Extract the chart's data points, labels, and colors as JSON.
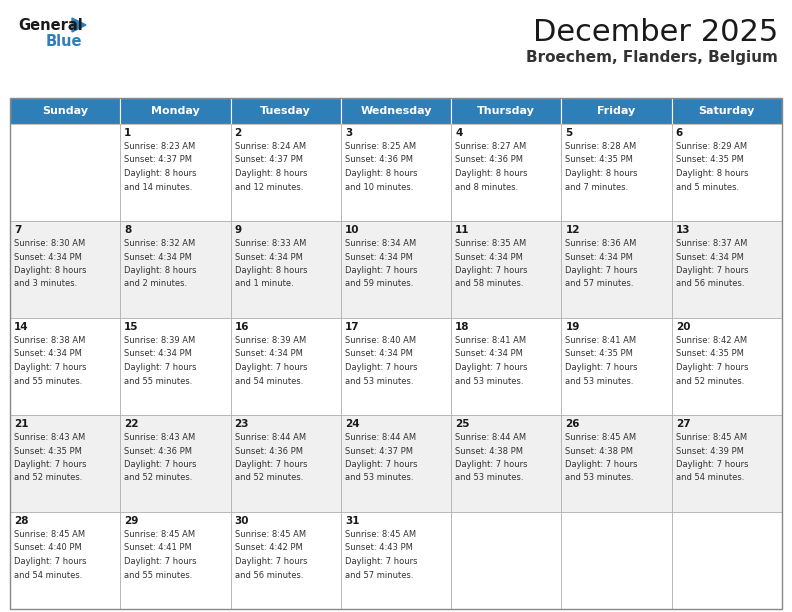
{
  "title": "December 2025",
  "subtitle": "Broechem, Flanders, Belgium",
  "header_color": "#2E7EB8",
  "header_text_color": "#FFFFFF",
  "background_color": "#FFFFFF",
  "grid_color": "#CCCCCC",
  "days_of_week": [
    "Sunday",
    "Monday",
    "Tuesday",
    "Wednesday",
    "Thursday",
    "Friday",
    "Saturday"
  ],
  "calendar_data": [
    [
      {
        "day": "",
        "sunrise": "",
        "sunset": "",
        "daylight": ""
      },
      {
        "day": "1",
        "sunrise": "8:23 AM",
        "sunset": "4:37 PM",
        "daylight": "8 hours\nand 14 minutes."
      },
      {
        "day": "2",
        "sunrise": "8:24 AM",
        "sunset": "4:37 PM",
        "daylight": "8 hours\nand 12 minutes."
      },
      {
        "day": "3",
        "sunrise": "8:25 AM",
        "sunset": "4:36 PM",
        "daylight": "8 hours\nand 10 minutes."
      },
      {
        "day": "4",
        "sunrise": "8:27 AM",
        "sunset": "4:36 PM",
        "daylight": "8 hours\nand 8 minutes."
      },
      {
        "day": "5",
        "sunrise": "8:28 AM",
        "sunset": "4:35 PM",
        "daylight": "8 hours\nand 7 minutes."
      },
      {
        "day": "6",
        "sunrise": "8:29 AM",
        "sunset": "4:35 PM",
        "daylight": "8 hours\nand 5 minutes."
      }
    ],
    [
      {
        "day": "7",
        "sunrise": "8:30 AM",
        "sunset": "4:34 PM",
        "daylight": "8 hours\nand 3 minutes."
      },
      {
        "day": "8",
        "sunrise": "8:32 AM",
        "sunset": "4:34 PM",
        "daylight": "8 hours\nand 2 minutes."
      },
      {
        "day": "9",
        "sunrise": "8:33 AM",
        "sunset": "4:34 PM",
        "daylight": "8 hours\nand 1 minute."
      },
      {
        "day": "10",
        "sunrise": "8:34 AM",
        "sunset": "4:34 PM",
        "daylight": "7 hours\nand 59 minutes."
      },
      {
        "day": "11",
        "sunrise": "8:35 AM",
        "sunset": "4:34 PM",
        "daylight": "7 hours\nand 58 minutes."
      },
      {
        "day": "12",
        "sunrise": "8:36 AM",
        "sunset": "4:34 PM",
        "daylight": "7 hours\nand 57 minutes."
      },
      {
        "day": "13",
        "sunrise": "8:37 AM",
        "sunset": "4:34 PM",
        "daylight": "7 hours\nand 56 minutes."
      }
    ],
    [
      {
        "day": "14",
        "sunrise": "8:38 AM",
        "sunset": "4:34 PM",
        "daylight": "7 hours\nand 55 minutes."
      },
      {
        "day": "15",
        "sunrise": "8:39 AM",
        "sunset": "4:34 PM",
        "daylight": "7 hours\nand 55 minutes."
      },
      {
        "day": "16",
        "sunrise": "8:39 AM",
        "sunset": "4:34 PM",
        "daylight": "7 hours\nand 54 minutes."
      },
      {
        "day": "17",
        "sunrise": "8:40 AM",
        "sunset": "4:34 PM",
        "daylight": "7 hours\nand 53 minutes."
      },
      {
        "day": "18",
        "sunrise": "8:41 AM",
        "sunset": "4:34 PM",
        "daylight": "7 hours\nand 53 minutes."
      },
      {
        "day": "19",
        "sunrise": "8:41 AM",
        "sunset": "4:35 PM",
        "daylight": "7 hours\nand 53 minutes."
      },
      {
        "day": "20",
        "sunrise": "8:42 AM",
        "sunset": "4:35 PM",
        "daylight": "7 hours\nand 52 minutes."
      }
    ],
    [
      {
        "day": "21",
        "sunrise": "8:43 AM",
        "sunset": "4:35 PM",
        "daylight": "7 hours\nand 52 minutes."
      },
      {
        "day": "22",
        "sunrise": "8:43 AM",
        "sunset": "4:36 PM",
        "daylight": "7 hours\nand 52 minutes."
      },
      {
        "day": "23",
        "sunrise": "8:44 AM",
        "sunset": "4:36 PM",
        "daylight": "7 hours\nand 52 minutes."
      },
      {
        "day": "24",
        "sunrise": "8:44 AM",
        "sunset": "4:37 PM",
        "daylight": "7 hours\nand 53 minutes."
      },
      {
        "day": "25",
        "sunrise": "8:44 AM",
        "sunset": "4:38 PM",
        "daylight": "7 hours\nand 53 minutes."
      },
      {
        "day": "26",
        "sunrise": "8:45 AM",
        "sunset": "4:38 PM",
        "daylight": "7 hours\nand 53 minutes."
      },
      {
        "day": "27",
        "sunrise": "8:45 AM",
        "sunset": "4:39 PM",
        "daylight": "7 hours\nand 54 minutes."
      }
    ],
    [
      {
        "day": "28",
        "sunrise": "8:45 AM",
        "sunset": "4:40 PM",
        "daylight": "7 hours\nand 54 minutes."
      },
      {
        "day": "29",
        "sunrise": "8:45 AM",
        "sunset": "4:41 PM",
        "daylight": "7 hours\nand 55 minutes."
      },
      {
        "day": "30",
        "sunrise": "8:45 AM",
        "sunset": "4:42 PM",
        "daylight": "7 hours\nand 56 minutes."
      },
      {
        "day": "31",
        "sunrise": "8:45 AM",
        "sunset": "4:43 PM",
        "daylight": "7 hours\nand 57 minutes."
      },
      {
        "day": "",
        "sunrise": "",
        "sunset": "",
        "daylight": ""
      },
      {
        "day": "",
        "sunrise": "",
        "sunset": "",
        "daylight": ""
      },
      {
        "day": "",
        "sunrise": "",
        "sunset": "",
        "daylight": ""
      }
    ]
  ]
}
